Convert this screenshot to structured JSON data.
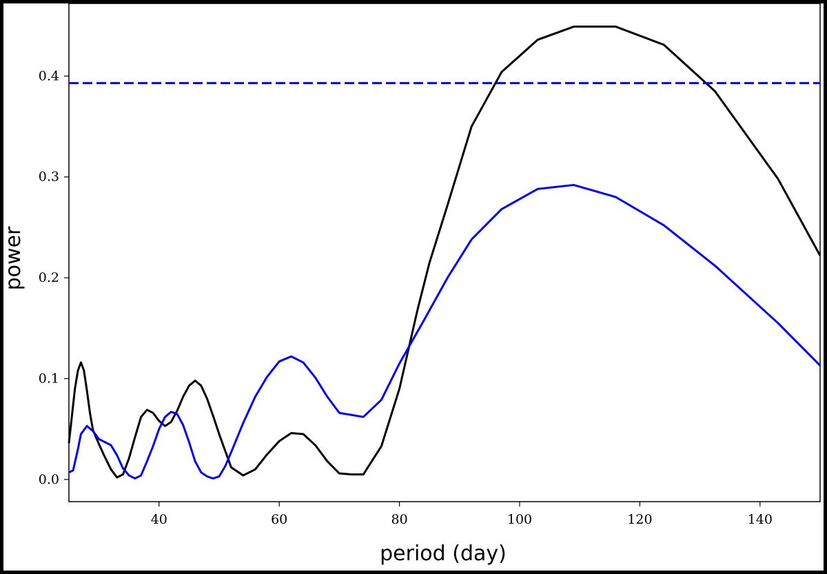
{
  "chart_data": {
    "type": "line",
    "xlabel": "period (day)",
    "ylabel": "power",
    "xlim": [
      25,
      150
    ],
    "ylim": [
      -0.022,
      0.472
    ],
    "xticks": [
      40,
      60,
      80,
      100,
      120,
      140
    ],
    "xtick_labels": [
      "40",
      "60",
      "80",
      "100",
      "120",
      "140"
    ],
    "yticks": [
      0.0,
      0.1,
      0.2,
      0.3,
      0.4
    ],
    "ytick_labels": [
      "0.0",
      "0.1",
      "0.2",
      "0.3",
      "0.4"
    ],
    "grid": false,
    "series": [
      {
        "color": "#000000",
        "style": "solid",
        "x": [
          25,
          26,
          26.5,
          27,
          27.5,
          28,
          28.5,
          29,
          30,
          31,
          32,
          33,
          34,
          35,
          36,
          37,
          38,
          39,
          40,
          41,
          42,
          43,
          44,
          45,
          46,
          47,
          48,
          49,
          50,
          52,
          54,
          56,
          58,
          60,
          62,
          64,
          66,
          68,
          70,
          72,
          74,
          77,
          80,
          83,
          85,
          88,
          92,
          97,
          103,
          109,
          116,
          124,
          132.5,
          143,
          150
        ],
        "y": [
          0.036,
          0.09,
          0.108,
          0.116,
          0.108,
          0.088,
          0.066,
          0.049,
          0.035,
          0.022,
          0.01,
          0.002,
          0.005,
          0.021,
          0.042,
          0.062,
          0.069,
          0.066,
          0.058,
          0.053,
          0.057,
          0.068,
          0.082,
          0.093,
          0.098,
          0.093,
          0.08,
          0.063,
          0.045,
          0.012,
          0.004,
          0.01,
          0.025,
          0.038,
          0.046,
          0.045,
          0.034,
          0.018,
          0.006,
          0.005,
          0.005,
          0.033,
          0.09,
          0.168,
          0.215,
          0.272,
          0.35,
          0.404,
          0.436,
          0.449,
          0.449,
          0.431,
          0.385,
          0.298,
          0.222
        ]
      },
      {
        "color": "#0000ff",
        "style": "solid",
        "x": [
          25,
          25.7,
          26.5,
          27,
          28,
          29,
          30,
          31,
          32,
          33,
          34,
          35,
          36,
          37,
          38,
          39,
          40,
          41,
          42,
          43,
          44,
          45,
          46,
          47,
          48,
          49,
          50,
          51,
          52,
          54,
          56,
          58,
          60,
          62,
          64,
          66,
          68,
          70,
          72,
          74,
          77,
          80,
          84,
          88,
          92,
          97,
          103,
          109,
          116,
          124,
          132.5,
          143,
          150
        ],
        "y": [
          0.007,
          0.009,
          0.03,
          0.045,
          0.053,
          0.048,
          0.04,
          0.037,
          0.034,
          0.024,
          0.011,
          0.004,
          0.001,
          0.004,
          0.018,
          0.033,
          0.05,
          0.062,
          0.067,
          0.065,
          0.054,
          0.037,
          0.018,
          0.007,
          0.003,
          0.001,
          0.003,
          0.013,
          0.027,
          0.056,
          0.082,
          0.102,
          0.117,
          0.122,
          0.116,
          0.101,
          0.082,
          0.066,
          0.064,
          0.062,
          0.079,
          0.115,
          0.157,
          0.2,
          0.238,
          0.268,
          0.288,
          0.292,
          0.28,
          0.252,
          0.212,
          0.155,
          0.113
        ]
      },
      {
        "color": "#0000ff",
        "style": "dashed",
        "x": [
          25,
          150
        ],
        "y": [
          0.393,
          0.393
        ]
      }
    ]
  }
}
